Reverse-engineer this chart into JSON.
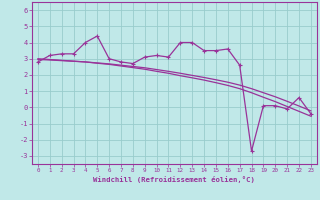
{
  "xlabel": "Windchill (Refroidissement éolien,°C)",
  "background_color": "#c0e8e8",
  "line_color": "#993399",
  "grid_color": "#99cccc",
  "x": [
    0,
    1,
    2,
    3,
    4,
    5,
    6,
    7,
    8,
    9,
    10,
    11,
    12,
    13,
    14,
    15,
    16,
    17,
    18,
    19,
    20,
    21,
    22,
    23
  ],
  "y_main": [
    2.8,
    3.2,
    3.3,
    3.3,
    4.0,
    4.4,
    3.0,
    2.8,
    2.7,
    3.1,
    3.2,
    3.1,
    4.0,
    4.0,
    3.5,
    3.5,
    3.6,
    2.6,
    -2.7,
    0.1,
    0.1,
    -0.1,
    0.6,
    -0.4
  ],
  "y_line1": [
    3.0,
    2.95,
    2.9,
    2.85,
    2.8,
    2.72,
    2.65,
    2.55,
    2.45,
    2.35,
    2.22,
    2.1,
    1.95,
    1.82,
    1.68,
    1.52,
    1.35,
    1.15,
    0.9,
    0.62,
    0.35,
    0.05,
    -0.25,
    -0.55
  ],
  "y_line2": [
    2.95,
    2.92,
    2.88,
    2.84,
    2.8,
    2.74,
    2.68,
    2.6,
    2.52,
    2.44,
    2.33,
    2.22,
    2.1,
    1.97,
    1.84,
    1.7,
    1.55,
    1.37,
    1.15,
    0.9,
    0.65,
    0.37,
    0.08,
    -0.22
  ],
  "ylim": [
    -3.5,
    6.5
  ],
  "xlim": [
    -0.5,
    23.5
  ],
  "yticks": [
    -3,
    -2,
    -1,
    0,
    1,
    2,
    3,
    4,
    5,
    6
  ],
  "xticks": [
    0,
    1,
    2,
    3,
    4,
    5,
    6,
    7,
    8,
    9,
    10,
    11,
    12,
    13,
    14,
    15,
    16,
    17,
    18,
    19,
    20,
    21,
    22,
    23
  ]
}
